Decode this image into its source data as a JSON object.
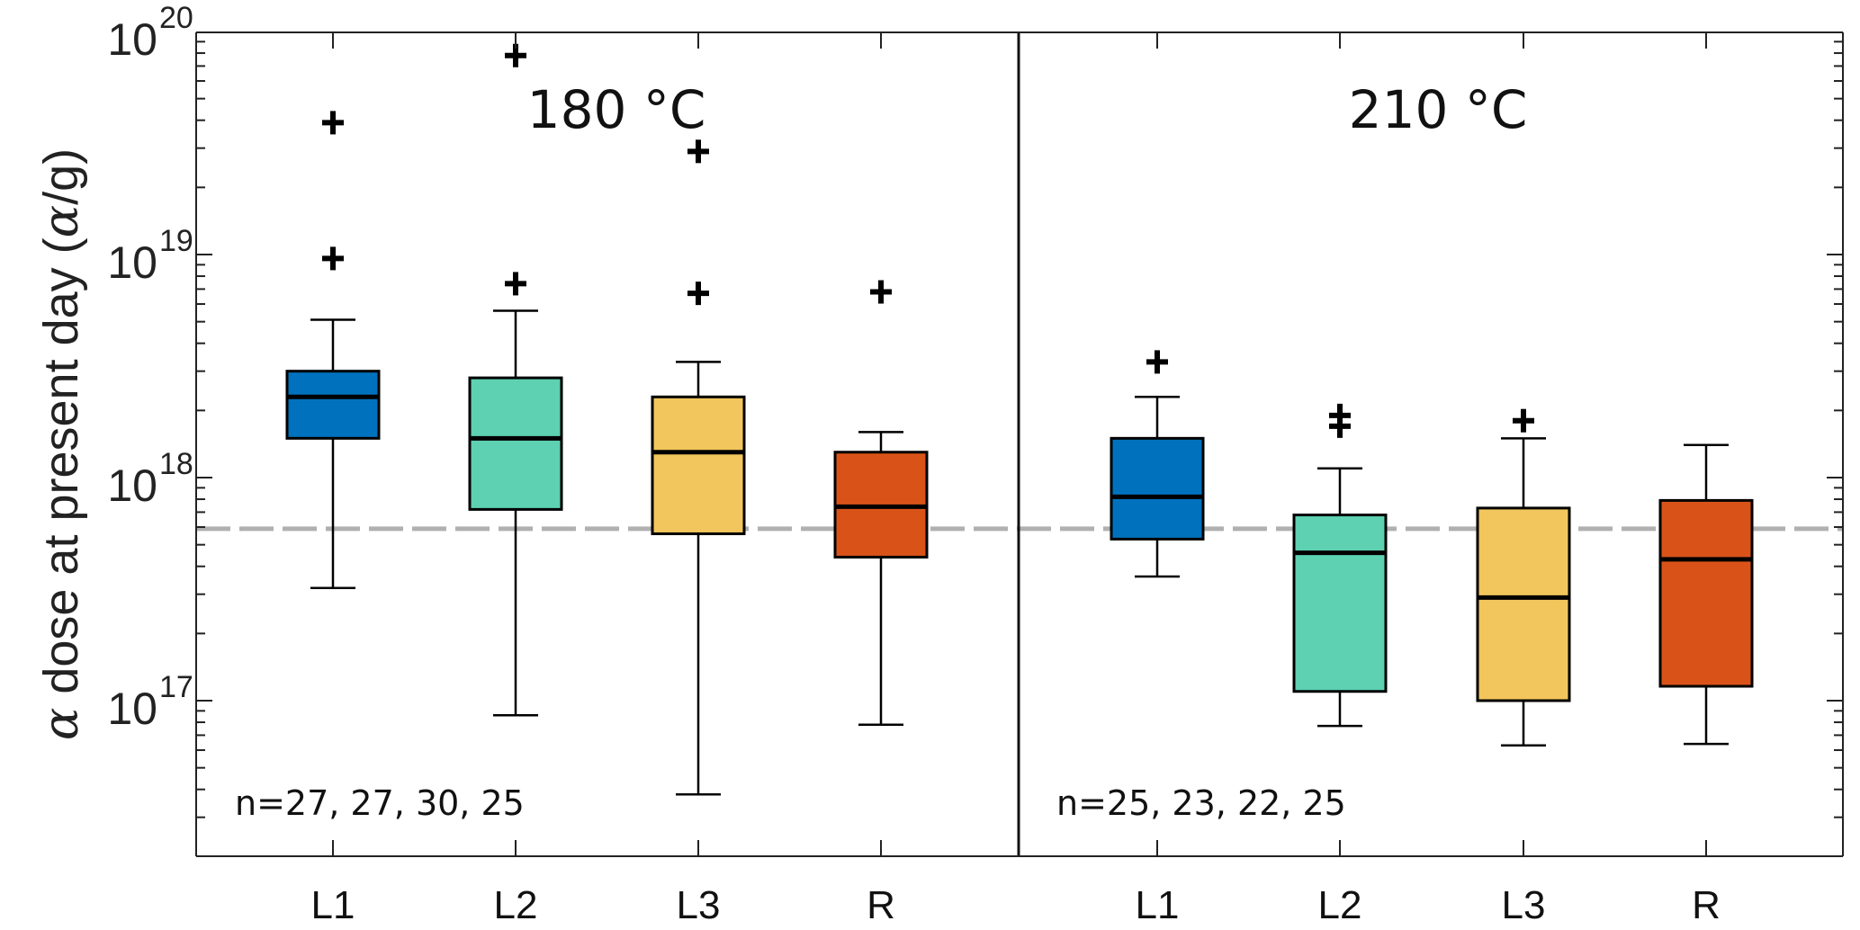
{
  "chart_data": {
    "type": "box",
    "ylabel": "α dose at present day (α/g)",
    "ylabel_parts": {
      "symbol": "α",
      "main": " dose at present day (",
      "unit_symbol": "α",
      "unit_end": "/g)"
    },
    "yscale": "log",
    "ylim": [
      2e+16,
      1e+20
    ],
    "yticks": [
      {
        "base": "10",
        "exp": "17",
        "value": 1e+17
      },
      {
        "base": "10",
        "exp": "18",
        "value": 1e+18
      },
      {
        "base": "10",
        "exp": "19",
        "value": 1e+19
      },
      {
        "base": "10",
        "exp": "20",
        "value": 1e+20
      }
    ],
    "reference_line": {
      "value": 5.9e+17,
      "style": "dashed",
      "color": "#b0b0b0"
    },
    "colors": {
      "L1": "#0072bd",
      "L2": "#5dd1b2",
      "L3": "#f2c65c",
      "R": "#d95319"
    },
    "panels": [
      {
        "label": "180 °C",
        "n_text": "n=27, 27, 30, 25",
        "groups": [
          {
            "name": "L1",
            "whisker_low": 3.2e+17,
            "q1": 1.5e+18,
            "median": 2.3e+18,
            "q3": 3e+18,
            "whisker_high": 5.1e+18,
            "outliers": [
              9.6e+18,
              3.9e+19
            ]
          },
          {
            "name": "L2",
            "whisker_low": 8.6e+16,
            "q1": 7.2e+17,
            "median": 1.5e+18,
            "q3": 2.8e+18,
            "whisker_high": 5.6e+18,
            "outliers": [
              7.4e+18,
              7.8e+19
            ]
          },
          {
            "name": "L3",
            "whisker_low": 3.8e+16,
            "q1": 5.6e+17,
            "median": 1.3e+18,
            "q3": 2.3e+18,
            "whisker_high": 3.3e+18,
            "outliers": [
              6.7e+18,
              2.9e+19
            ]
          },
          {
            "name": "R",
            "whisker_low": 7.8e+16,
            "q1": 4.4e+17,
            "median": 7.4e+17,
            "q3": 1.3e+18,
            "whisker_high": 1.6e+18,
            "outliers": [
              6.8e+18
            ]
          }
        ]
      },
      {
        "label": "210 °C",
        "n_text": "n=25, 23, 22, 25",
        "groups": [
          {
            "name": "L1",
            "whisker_low": 3.6e+17,
            "q1": 5.3e+17,
            "median": 8.2e+17,
            "q3": 1.5e+18,
            "whisker_high": 2.3e+18,
            "outliers": [
              3.3e+18
            ]
          },
          {
            "name": "L2",
            "whisker_low": 7.7e+16,
            "q1": 1.1e+17,
            "median": 4.6e+17,
            "q3": 6.8e+17,
            "whisker_high": 1.1e+18,
            "outliers": [
              1.7e+18,
              1.9e+18
            ]
          },
          {
            "name": "L3",
            "whisker_low": 6.3e+16,
            "q1": 1e+17,
            "median": 2.9e+17,
            "q3": 7.3e+17,
            "whisker_high": 1.5e+18,
            "outliers": [
              1.8e+18
            ]
          },
          {
            "name": "R",
            "whisker_low": 6.4e+16,
            "q1": 1.16e+17,
            "median": 4.3e+17,
            "q3": 7.9e+17,
            "whisker_high": 1.4e+18,
            "outliers": []
          }
        ]
      }
    ]
  }
}
